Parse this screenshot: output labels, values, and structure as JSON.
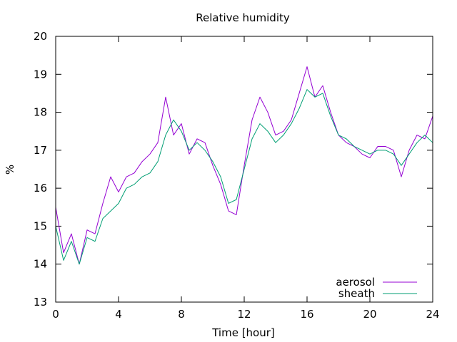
{
  "chart_data": {
    "type": "line",
    "title": "Relative humidity",
    "xlabel": "Time [hour]",
    "ylabel": "%",
    "xlim": [
      0,
      24
    ],
    "ylim": [
      13,
      20
    ],
    "xticks": [
      0,
      4,
      8,
      12,
      16,
      20,
      24
    ],
    "xtick_labels": [
      "0",
      "4",
      "8",
      "12",
      "16",
      "20",
      "24"
    ],
    "yticks": [
      13,
      14,
      15,
      16,
      17,
      18,
      19,
      20
    ],
    "ytick_labels": [
      "13",
      "14",
      "15",
      "16",
      "17",
      "18",
      "19",
      "20"
    ],
    "grid": false,
    "legend_position": "bottom-right",
    "series": [
      {
        "name": "aerosol",
        "color": "#9400d3",
        "x": [
          0,
          0.5,
          1,
          1.5,
          2,
          2.5,
          3,
          3.5,
          4,
          4.5,
          5,
          5.5,
          6,
          6.5,
          7,
          7.5,
          8,
          8.5,
          9,
          9.5,
          10,
          10.5,
          11,
          11.5,
          12,
          12.5,
          13,
          13.5,
          14,
          14.5,
          15,
          15.5,
          16,
          16.5,
          17,
          17.5,
          18,
          18.5,
          19,
          19.5,
          20,
          20.5,
          21,
          21.5,
          22,
          22.5,
          23,
          23.5,
          24
        ],
        "y": [
          15.5,
          14.3,
          14.8,
          14.0,
          14.9,
          14.8,
          15.6,
          16.3,
          15.9,
          16.3,
          16.4,
          16.7,
          16.9,
          17.2,
          18.4,
          17.4,
          17.7,
          16.9,
          17.3,
          17.2,
          16.6,
          16.1,
          15.4,
          15.3,
          16.6,
          17.8,
          18.4,
          18.0,
          17.4,
          17.5,
          17.8,
          18.5,
          19.2,
          18.4,
          18.7,
          18.0,
          17.4,
          17.2,
          17.1,
          16.9,
          16.8,
          17.1,
          17.1,
          17.0,
          16.3,
          17.0,
          17.4,
          17.3,
          17.9
        ]
      },
      {
        "name": "sheath",
        "color": "#009e73",
        "x": [
          0,
          0.5,
          1,
          1.5,
          2,
          2.5,
          3,
          3.5,
          4,
          4.5,
          5,
          5.5,
          6,
          6.5,
          7,
          7.5,
          8,
          8.5,
          9,
          9.5,
          10,
          10.5,
          11,
          11.5,
          12,
          12.5,
          13,
          13.5,
          14,
          14.5,
          15,
          15.5,
          16,
          16.5,
          17,
          17.5,
          18,
          18.5,
          19,
          19.5,
          20,
          20.5,
          21,
          21.5,
          22,
          22.5,
          23,
          23.5,
          24
        ],
        "y": [
          15.0,
          14.1,
          14.6,
          14.0,
          14.7,
          14.6,
          15.2,
          15.4,
          15.6,
          16.0,
          16.1,
          16.3,
          16.4,
          16.7,
          17.4,
          17.8,
          17.5,
          17.0,
          17.2,
          17.0,
          16.7,
          16.3,
          15.6,
          15.7,
          16.5,
          17.3,
          17.7,
          17.5,
          17.2,
          17.4,
          17.7,
          18.1,
          18.6,
          18.4,
          18.5,
          17.9,
          17.4,
          17.3,
          17.1,
          17.0,
          16.9,
          17.0,
          17.0,
          16.9,
          16.6,
          16.9,
          17.2,
          17.4,
          17.2
        ]
      }
    ]
  }
}
